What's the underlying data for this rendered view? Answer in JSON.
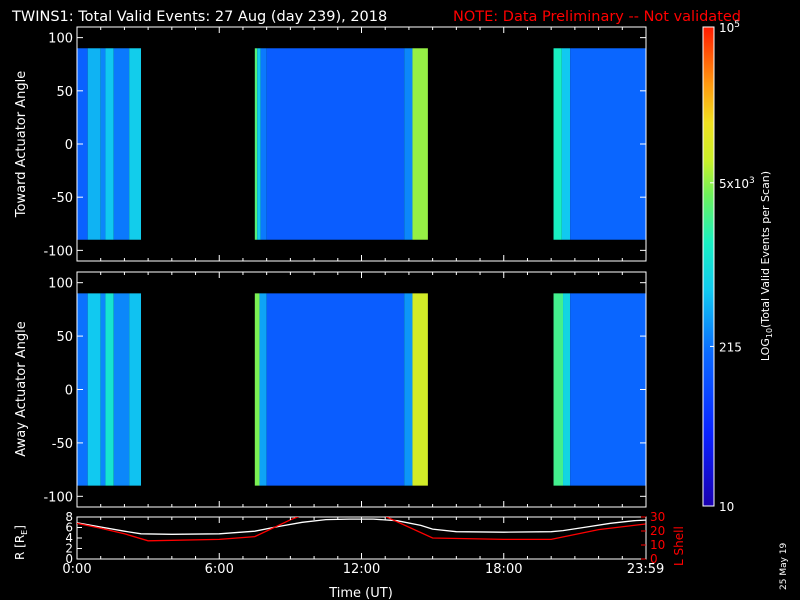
{
  "title": "TWINS1: Total Valid Events: 27 Aug (day 239), 2018",
  "note": "NOTE: Data Preliminary -- Not validated",
  "date_stamp": "25 May 19",
  "colors": {
    "background": "#000000",
    "foreground": "#ffffff",
    "note": "#ff0000",
    "l_shell": "#ff0000",
    "radius": "#ffffff"
  },
  "chart_data": [
    {
      "type": "heatmap",
      "panel": "top",
      "ylabel": "Toward Actuator Angle",
      "ylim": [
        -110,
        110
      ],
      "yticks": [
        100,
        50,
        0,
        -50,
        -100
      ],
      "data_y_range": [
        -90,
        90
      ],
      "xlim": [
        0,
        24
      ],
      "color_scale": "log",
      "segments": [
        {
          "t0": 0.0,
          "t1": 0.45,
          "level": 0.3
        },
        {
          "t0": 0.45,
          "t1": 1.0,
          "level": 0.42
        },
        {
          "t0": 1.0,
          "t1": 1.2,
          "level": 0.36
        },
        {
          "t0": 1.2,
          "t1": 1.55,
          "level": 0.45
        },
        {
          "t0": 1.55,
          "t1": 2.2,
          "level": 0.34
        },
        {
          "t0": 2.2,
          "t1": 2.7,
          "level": 0.46
        },
        {
          "t0": 7.5,
          "t1": 7.6,
          "level": 0.62
        },
        {
          "t0": 7.6,
          "t1": 7.75,
          "level": 0.45
        },
        {
          "t0": 7.75,
          "t1": 8.0,
          "level": 0.34
        },
        {
          "t0": 8.0,
          "t1": 13.8,
          "level": 0.29
        },
        {
          "t0": 13.8,
          "t1": 14.15,
          "level": 0.36
        },
        {
          "t0": 14.15,
          "t1": 14.8,
          "level": 0.68
        },
        {
          "t0": 20.1,
          "t1": 20.45,
          "level": 0.55
        },
        {
          "t0": 20.45,
          "t1": 20.8,
          "level": 0.45
        },
        {
          "t0": 20.8,
          "t1": 24.0,
          "level": 0.31
        }
      ]
    },
    {
      "type": "heatmap",
      "panel": "middle",
      "ylabel": "Away Actuator Angle",
      "ylim": [
        -110,
        110
      ],
      "yticks": [
        100,
        50,
        0,
        -50,
        -100
      ],
      "data_y_range": [
        -90,
        90
      ],
      "xlim": [
        0,
        24
      ],
      "color_scale": "log",
      "segments": [
        {
          "t0": 0.0,
          "t1": 0.45,
          "level": 0.33
        },
        {
          "t0": 0.45,
          "t1": 1.0,
          "level": 0.45
        },
        {
          "t0": 1.0,
          "t1": 1.2,
          "level": 0.36
        },
        {
          "t0": 1.2,
          "t1": 1.55,
          "level": 0.52
        },
        {
          "t0": 1.55,
          "t1": 2.2,
          "level": 0.36
        },
        {
          "t0": 2.2,
          "t1": 2.7,
          "level": 0.44
        },
        {
          "t0": 7.5,
          "t1": 7.7,
          "level": 0.66
        },
        {
          "t0": 7.7,
          "t1": 8.0,
          "level": 0.4
        },
        {
          "t0": 8.0,
          "t1": 13.8,
          "level": 0.29
        },
        {
          "t0": 13.8,
          "t1": 14.15,
          "level": 0.38
        },
        {
          "t0": 14.15,
          "t1": 14.8,
          "level": 0.74
        },
        {
          "t0": 20.1,
          "t1": 20.5,
          "level": 0.6
        },
        {
          "t0": 20.5,
          "t1": 20.8,
          "level": 0.48
        },
        {
          "t0": 20.8,
          "t1": 24.0,
          "level": 0.31
        }
      ]
    },
    {
      "type": "line",
      "panel": "bottom",
      "ylabel": "R [R",
      "ylabel_sub": "E",
      "ylabel_close": "]",
      "ylim": [
        0,
        8
      ],
      "yticks": [
        0,
        2,
        4,
        6,
        8
      ],
      "y2label": "L Shell",
      "y2lim": [
        0,
        30
      ],
      "y2ticks": [
        0,
        10,
        20,
        30
      ],
      "xlim": [
        0,
        24
      ],
      "xticks": [
        {
          "t": 0,
          "label": "0:00"
        },
        {
          "t": 6,
          "label": "6:00"
        },
        {
          "t": 12,
          "label": "12:00"
        },
        {
          "t": 18,
          "label": "18:00"
        },
        {
          "t": 23.983,
          "label": "23:59"
        }
      ],
      "xlabel": "Time (UT)",
      "series": [
        {
          "axis": "left",
          "color": "#ffffff",
          "x": [
            0,
            1,
            2,
            2.7,
            4,
            6,
            7.5,
            8.5,
            9.5,
            10.5,
            11.5,
            12,
            12.5,
            13.5,
            14.5,
            15,
            16,
            18,
            20,
            20.5,
            21.5,
            22.5,
            23.5,
            23.983
          ],
          "y": [
            6.9,
            6.1,
            5.3,
            4.8,
            4.7,
            4.8,
            5.3,
            6.2,
            7.0,
            7.5,
            7.6,
            7.6,
            7.6,
            7.3,
            6.4,
            5.7,
            5.2,
            5.1,
            5.2,
            5.4,
            6.1,
            6.8,
            7.3,
            7.4
          ]
        },
        {
          "axis": "right",
          "color": "#ff0000",
          "x": [
            0,
            1,
            2,
            3,
            6,
            7.5,
            9,
            9.6,
            12.8,
            15,
            18,
            20,
            22,
            23.983
          ],
          "y": [
            25.5,
            22,
            18,
            13,
            14,
            16,
            28,
            32,
            32,
            15,
            14,
            14,
            21,
            25
          ]
        }
      ]
    }
  ],
  "colorbar": {
    "label": "LOG",
    "label_sub": "10",
    "label_rest": "(Total Valid Events per Scan)",
    "min": 10,
    "max": 100000,
    "ticks": [
      {
        "value": 100000,
        "text": "10",
        "sup": "5"
      },
      {
        "value": 5000,
        "text": "5x10",
        "sup": "3"
      },
      {
        "value": 215,
        "text": "215",
        "sup": ""
      },
      {
        "value": 10,
        "text": "10",
        "sup": ""
      }
    ]
  }
}
